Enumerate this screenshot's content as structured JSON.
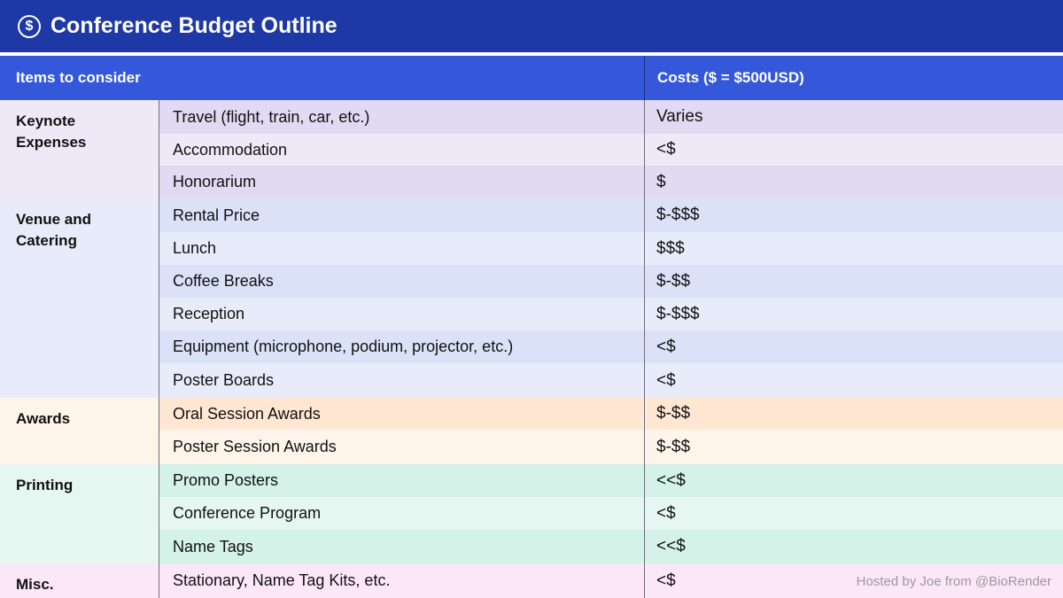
{
  "title": {
    "icon": "dollar-circle-icon",
    "icon_glyph": "$",
    "text": "Conference Budget Outline"
  },
  "header": {
    "items_label": "Items to consider",
    "costs_label": "Costs ($ = $500USD)"
  },
  "groups": [
    {
      "label_line1": "Keynote",
      "label_line2": "Expenses",
      "rows": [
        {
          "item": "Travel (flight, train, car, etc.)",
          "cost": "Varies"
        },
        {
          "item": "Accommodation",
          "cost": "<$"
        },
        {
          "item": "Honorarium",
          "cost": "$"
        }
      ]
    },
    {
      "label_line1": "Venue and",
      "label_line2": "Catering",
      "rows": [
        {
          "item": "Rental Price",
          "cost": "$-$$$"
        },
        {
          "item": "Lunch",
          "cost": "$$$"
        },
        {
          "item": "Coffee Breaks",
          "cost": "$-$$"
        },
        {
          "item": "Reception",
          "cost": "$-$$$"
        },
        {
          "item": "Equipment (microphone, podium, projector, etc.)",
          "cost": "<$"
        },
        {
          "item": "Poster Boards",
          "cost": "<$"
        }
      ]
    },
    {
      "label_line1": "Awards",
      "label_line2": "",
      "rows": [
        {
          "item": "Oral Session Awards",
          "cost": "$-$$"
        },
        {
          "item": "Poster Session Awards",
          "cost": "$-$$"
        }
      ]
    },
    {
      "label_line1": "Printing",
      "label_line2": "",
      "rows": [
        {
          "item": "Promo Posters",
          "cost": "<<$"
        },
        {
          "item": "Conference Program",
          "cost": "<$"
        },
        {
          "item": "Name Tags",
          "cost": "<<$"
        }
      ]
    },
    {
      "label_line1": "Misc.",
      "label_line2": "",
      "rows": [
        {
          "item": "Stationary, Name Tag Kits, etc.",
          "cost": "<$"
        }
      ]
    }
  ],
  "colors": {
    "title_bar": "#1e38a5",
    "header": "#3558db",
    "keynote_label": "#efe9f7",
    "keynote_dark": "#e2d9f2",
    "keynote_light": "#efe9f7",
    "venue_label": "#e8ecfa",
    "venue_dark": "#dbe2f8",
    "venue_light": "#e8ecfa",
    "awards_label": "#fff4e9",
    "awards_dark": "#ffe7d3",
    "awards_light": "#fff4e9",
    "printing_label": "#e6f7f1",
    "printing_dark": "#d4f2e8",
    "printing_light": "#e6f7f1",
    "misc_label": "#fce7f9",
    "misc_dark": "#fce7f9",
    "misc_light": "#fce7f9"
  },
  "footer": "Hosted by Joe from @BioRender"
}
